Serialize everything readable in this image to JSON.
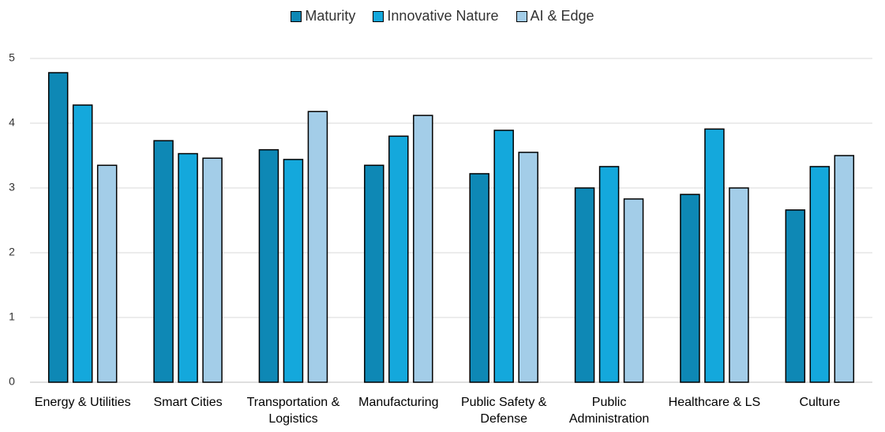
{
  "chart_data": {
    "type": "bar",
    "categories": [
      "Energy & Utilities",
      "Smart Cities",
      "Transportation & Logistics",
      "Manufacturing",
      "Public Safety & Defense",
      "Public Administration",
      "Healthcare & LS",
      "Culture"
    ],
    "series": [
      {
        "name": "Maturity",
        "color": "#0e88b5",
        "values": [
          4.78,
          3.73,
          3.59,
          3.35,
          3.22,
          3.0,
          2.9,
          2.66
        ]
      },
      {
        "name": "Innovative Nature",
        "color": "#14a8dc",
        "values": [
          4.28,
          3.53,
          3.44,
          3.8,
          3.89,
          3.33,
          3.91,
          3.33
        ]
      },
      {
        "name": "AI & Edge",
        "color": "#a3cde8",
        "values": [
          3.35,
          3.46,
          4.18,
          4.12,
          3.55,
          2.83,
          3.0,
          3.5
        ]
      }
    ],
    "ylim": [
      0,
      5
    ],
    "yticks": [
      0,
      1,
      2,
      3,
      4,
      5
    ],
    "grid": true,
    "legend": "top"
  }
}
